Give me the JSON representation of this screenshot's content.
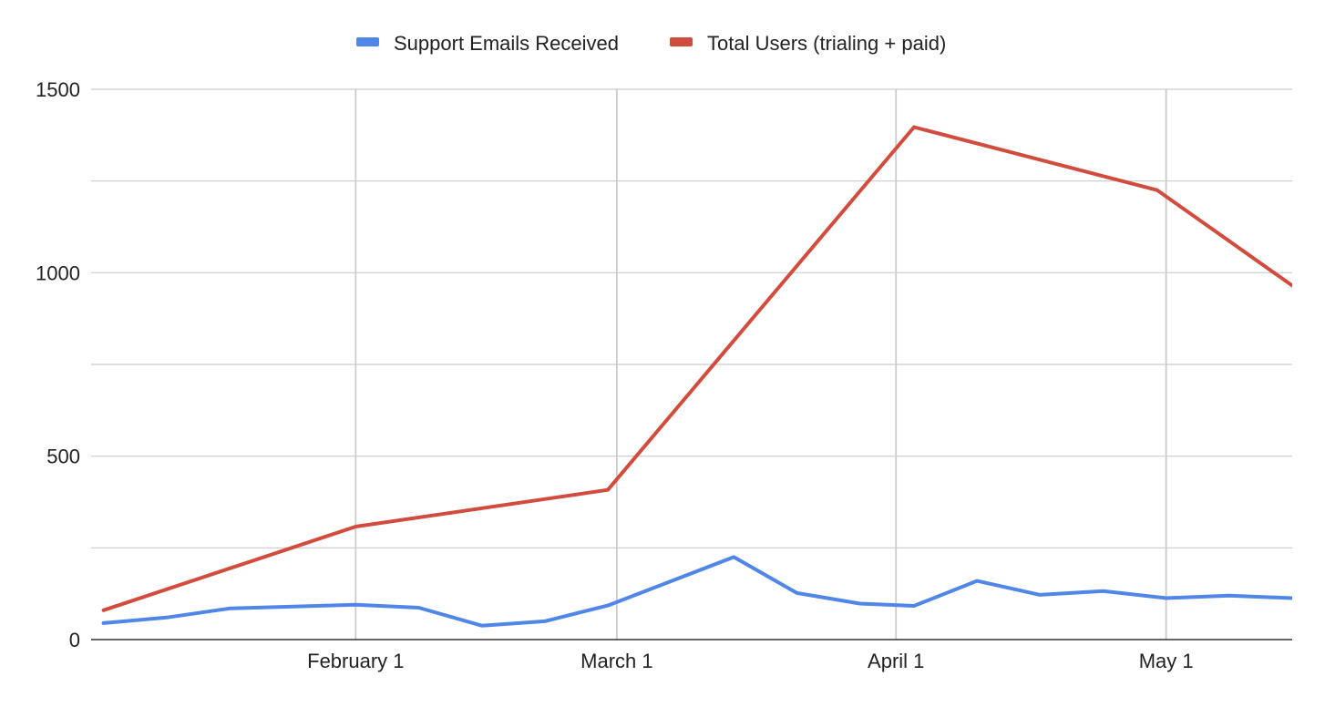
{
  "chart_data": {
    "type": "line",
    "title": "",
    "xlabel": "",
    "ylabel": "",
    "ylim": [
      0,
      1500
    ],
    "y_ticks": [
      0,
      500,
      1000,
      1500
    ],
    "y_tick_labels": [
      "0",
      "500",
      "1000",
      "1500"
    ],
    "x_ticks": [
      "2024-02-01",
      "2024-03-01",
      "2024-04-01",
      "2024-05-01"
    ],
    "x_tick_labels": [
      "February 1",
      "March 1",
      "April 1",
      "May 1"
    ],
    "grid": true,
    "legend_position": "top-center",
    "colors": {
      "Support Emails Received": "#4f86e8",
      "Total Users (trialing + paid)": "#d24c3e",
      "grid": "#cccccc",
      "axis": "#333333"
    },
    "series": [
      {
        "name": "Support Emails Received",
        "points": [
          {
            "x": "2024-01-04",
            "y": 45
          },
          {
            "x": "2024-01-11",
            "y": 60
          },
          {
            "x": "2024-01-18",
            "y": 85
          },
          {
            "x": "2024-02-01",
            "y": 95
          },
          {
            "x": "2024-02-08",
            "y": 87
          },
          {
            "x": "2024-02-15",
            "y": 38
          },
          {
            "x": "2024-02-22",
            "y": 50
          },
          {
            "x": "2024-02-29",
            "y": 93
          },
          {
            "x": "2024-03-14",
            "y": 225
          },
          {
            "x": "2024-03-21",
            "y": 127
          },
          {
            "x": "2024-03-28",
            "y": 98
          },
          {
            "x": "2024-04-03",
            "y": 92
          },
          {
            "x": "2024-04-10",
            "y": 160
          },
          {
            "x": "2024-04-17",
            "y": 122
          },
          {
            "x": "2024-04-24",
            "y": 132
          },
          {
            "x": "2024-05-01",
            "y": 113
          },
          {
            "x": "2024-05-08",
            "y": 120
          },
          {
            "x": "2024-05-15",
            "y": 113
          }
        ]
      },
      {
        "name": "Total Users (trialing + paid)",
        "points": [
          {
            "x": "2024-01-04",
            "y": 80
          },
          {
            "x": "2024-02-01",
            "y": 308
          },
          {
            "x": "2024-02-29",
            "y": 408
          },
          {
            "x": "2024-04-03",
            "y": 1397
          },
          {
            "x": "2024-04-30",
            "y": 1225
          },
          {
            "x": "2024-05-15",
            "y": 965
          }
        ]
      }
    ]
  }
}
